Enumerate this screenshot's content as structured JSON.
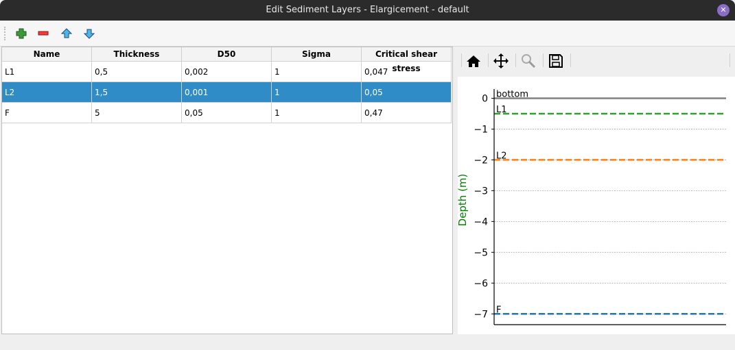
{
  "window": {
    "title": "Edit Sediment Layers - Elargicement - default"
  },
  "toolbar": {
    "buttons": [
      {
        "name": "add-layer-button",
        "icon": "plus-icon"
      },
      {
        "name": "remove-layer-button",
        "icon": "minus-icon"
      },
      {
        "name": "move-up-button",
        "icon": "arrow-up-icon"
      },
      {
        "name": "move-down-button",
        "icon": "arrow-down-icon"
      }
    ]
  },
  "table": {
    "columns": [
      "Name",
      "Thickness",
      "D50",
      "Sigma",
      "Critical shear stress"
    ],
    "rows": [
      [
        "L1",
        "0,5",
        "0,002",
        "1",
        "0,047"
      ],
      [
        "L2",
        "1,5",
        "0,001",
        "1",
        "0,05"
      ],
      [
        "F",
        "5",
        "0,05",
        "1",
        "0,47"
      ]
    ],
    "selected_row": 1,
    "selection_color": "#308cc6"
  },
  "plot_toolbar": {
    "buttons": [
      "home-icon",
      "pan-icon",
      "zoom-icon",
      "save-icon"
    ]
  },
  "chart_data": {
    "type": "line",
    "ylabel": "Depth (m)",
    "ylabel_color": "#008000",
    "ylim": [
      -7.35,
      0.3
    ],
    "yticks": [
      0,
      -1,
      -2,
      -3,
      -4,
      -5,
      -6,
      -7
    ],
    "ytick_labels": [
      "0",
      "−1",
      "−2",
      "−3",
      "−4",
      "−5",
      "−6",
      "−7"
    ],
    "grid": true,
    "lines": [
      {
        "label": "bottom",
        "y": 0,
        "color": "#808080",
        "style": "solid"
      },
      {
        "label": "L1",
        "y": -0.5,
        "color": "#2ca02c",
        "style": "dashed"
      },
      {
        "label": "L2",
        "y": -2,
        "color": "#ff7f0e",
        "style": "dashed"
      },
      {
        "label": "F",
        "y": -7,
        "color": "#1f77b4",
        "style": "dashed"
      }
    ]
  }
}
